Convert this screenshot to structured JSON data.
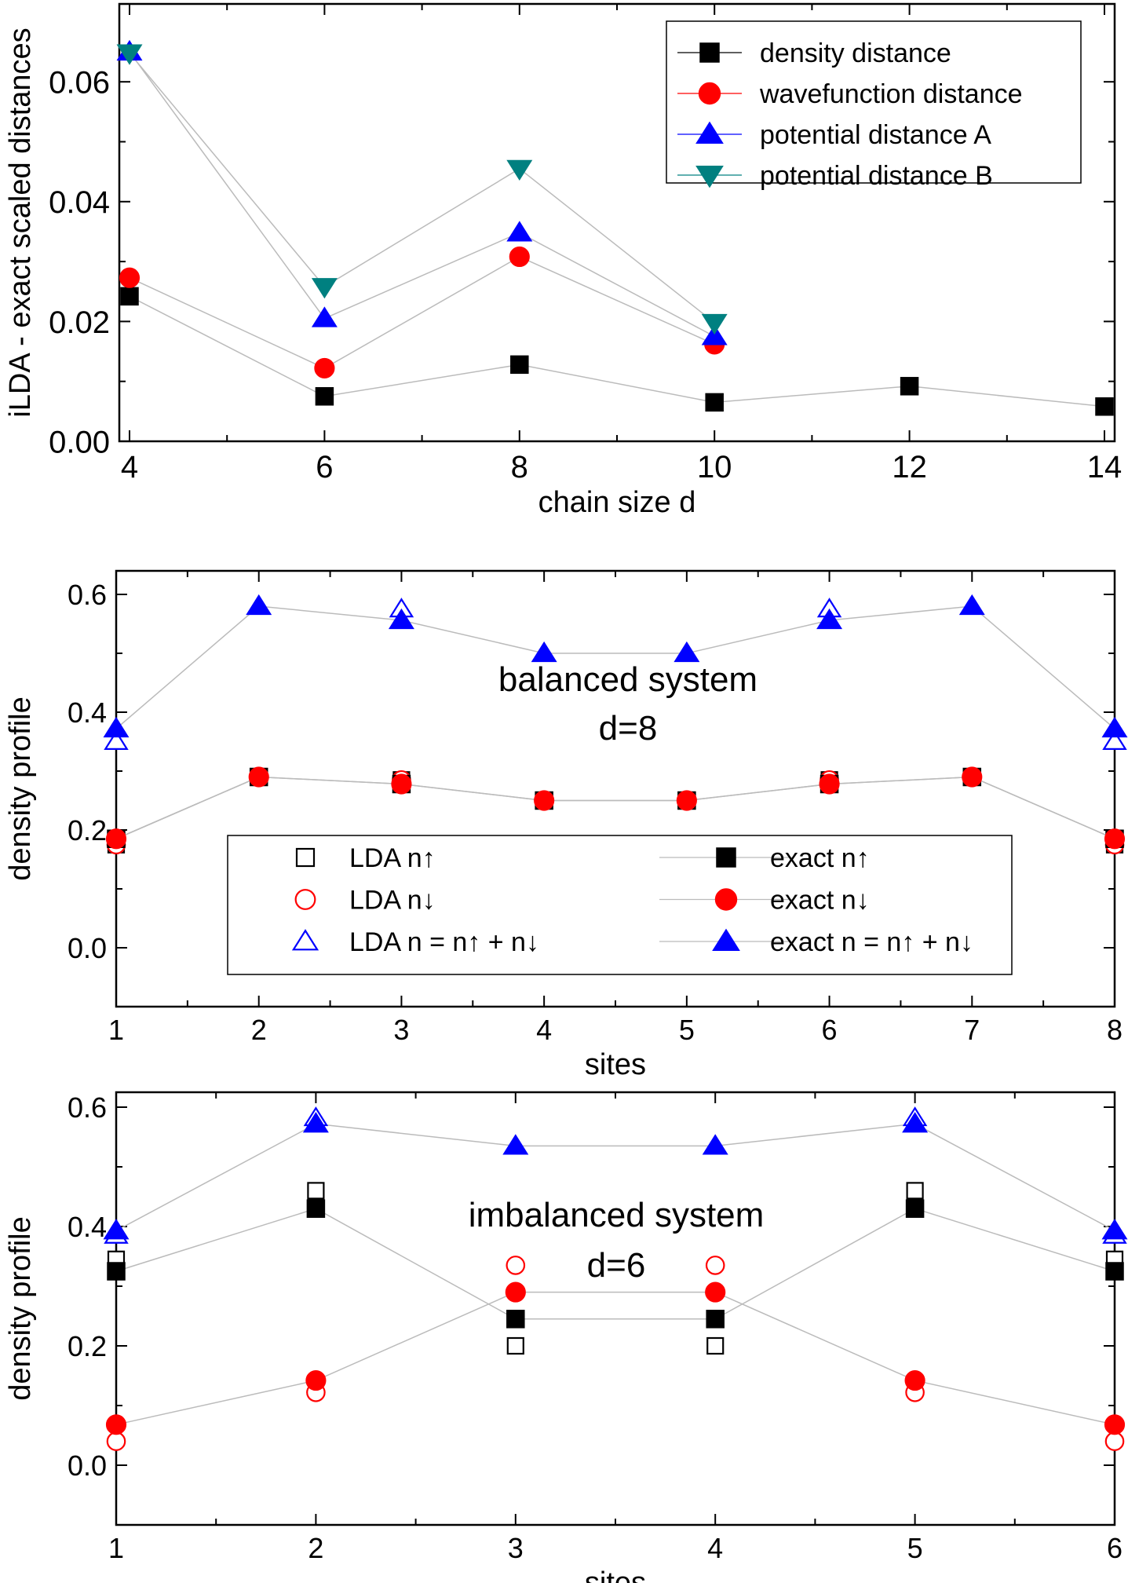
{
  "colors": {
    "black": "#000000",
    "red": "#ff0000",
    "blue": "#0000ff",
    "teal": "#008080",
    "line": "#bbbbbb"
  },
  "chart_data": [
    {
      "type": "scatter",
      "xlabel": "chain size d",
      "ylabel": "iLDA - exact scaled distances",
      "xlim": [
        4,
        14
      ],
      "ylim": [
        0.0,
        0.073
      ],
      "xticks": [
        4,
        6,
        8,
        10,
        12,
        14
      ],
      "yticks": [
        0.0,
        0.02,
        0.04,
        0.06
      ],
      "ytick_labels": [
        "0.00",
        "0.02",
        "0.04",
        "0.06"
      ],
      "x_minor": [
        5,
        7,
        9,
        11,
        13
      ],
      "legend": {
        "placement": "top-right",
        "columns": 1
      },
      "series": [
        {
          "name": "density distance",
          "marker": "square",
          "color": "#000000",
          "filled": true,
          "connect": true,
          "x": [
            4,
            6,
            8,
            10,
            12,
            14
          ],
          "y": [
            0.0242,
            0.0075,
            0.0128,
            0.0065,
            0.0092,
            0.0058
          ]
        },
        {
          "name": "wavefunction distance",
          "marker": "circle",
          "color": "#ff0000",
          "filled": true,
          "connect": true,
          "x": [
            4,
            6,
            8,
            10
          ],
          "y": [
            0.0273,
            0.0122,
            0.0308,
            0.0162
          ]
        },
        {
          "name": "potential distance A",
          "marker": "triangle-up",
          "color": "#0000ff",
          "filled": true,
          "connect": true,
          "x": [
            4,
            6,
            8,
            10
          ],
          "y": [
            0.065,
            0.0205,
            0.0348,
            0.0175
          ]
        },
        {
          "name": "potential distance B",
          "marker": "triangle-down",
          "color": "#008080",
          "filled": true,
          "connect": true,
          "x": [
            4,
            6,
            8,
            10
          ],
          "y": [
            0.0648,
            0.0258,
            0.0455,
            0.0198
          ]
        }
      ]
    },
    {
      "type": "scatter",
      "xlabel": "sites",
      "ylabel": "density profile",
      "xlim": [
        1,
        8
      ],
      "ylim": [
        -0.1,
        0.64
      ],
      "xticks": [
        1,
        2,
        3,
        4,
        5,
        6,
        7,
        8
      ],
      "yticks": [
        0.0,
        0.2,
        0.4,
        0.6
      ],
      "ytick_labels": [
        "0.0",
        "0.2",
        "0.4",
        "0.6"
      ],
      "x_minor": [
        1.5,
        2.5,
        3.5,
        4.5,
        5.5,
        6.5,
        7.5
      ],
      "annotation": [
        "balanced system",
        "d=8"
      ],
      "legend": {
        "placement": "lower-center",
        "columns": 2
      },
      "series": [
        {
          "name": "LDA n↑",
          "marker": "square",
          "color": "#000000",
          "filled": false,
          "connect": false,
          "x": [
            1,
            2,
            3,
            4,
            5,
            6,
            7,
            8
          ],
          "y": [
            0.175,
            0.29,
            0.285,
            0.25,
            0.25,
            0.285,
            0.29,
            0.175
          ]
        },
        {
          "name": "LDA n↓",
          "marker": "circle",
          "color": "#ff0000",
          "filled": false,
          "connect": false,
          "x": [
            1,
            2,
            3,
            4,
            5,
            6,
            7,
            8
          ],
          "y": [
            0.175,
            0.29,
            0.285,
            0.25,
            0.25,
            0.285,
            0.29,
            0.175
          ]
        },
        {
          "name": "LDA n = n↑ + n↓",
          "marker": "triangle-up",
          "color": "#0000ff",
          "filled": false,
          "connect": false,
          "x": [
            1,
            2,
            3,
            4,
            5,
            6,
            7,
            8
          ],
          "y": [
            0.35,
            0.58,
            0.575,
            0.5,
            0.5,
            0.575,
            0.58,
            0.35
          ]
        },
        {
          "name": "exact n↑",
          "marker": "square",
          "color": "#000000",
          "filled": true,
          "connect": true,
          "x": [
            1,
            2,
            3,
            4,
            5,
            6,
            7,
            8
          ],
          "y": [
            0.185,
            0.29,
            0.278,
            0.25,
            0.25,
            0.278,
            0.29,
            0.185
          ]
        },
        {
          "name": "exact n↓",
          "marker": "circle",
          "color": "#ff0000",
          "filled": true,
          "connect": true,
          "x": [
            1,
            2,
            3,
            4,
            5,
            6,
            7,
            8
          ],
          "y": [
            0.185,
            0.29,
            0.278,
            0.25,
            0.25,
            0.278,
            0.29,
            0.185
          ]
        },
        {
          "name": "exact n = n↑ + n↓",
          "marker": "triangle-up",
          "color": "#0000ff",
          "filled": true,
          "connect": true,
          "x": [
            1,
            2,
            3,
            4,
            5,
            6,
            7,
            8
          ],
          "y": [
            0.372,
            0.58,
            0.556,
            0.5,
            0.5,
            0.556,
            0.58,
            0.372
          ]
        }
      ]
    },
    {
      "type": "scatter",
      "xlabel": "sites",
      "ylabel": "density profile",
      "xlim": [
        1,
        6
      ],
      "ylim": [
        -0.1,
        0.625
      ],
      "xticks": [
        1,
        2,
        3,
        4,
        5,
        6
      ],
      "yticks": [
        0.0,
        0.2,
        0.4,
        0.6
      ],
      "ytick_labels": [
        "0.0",
        "0.2",
        "0.4",
        "0.6"
      ],
      "x_minor": [
        1.5,
        2.5,
        3.5,
        4.5,
        5.5
      ],
      "annotation": [
        "imbalanced system",
        "d=6"
      ],
      "series": [
        {
          "name": "LDA n↑",
          "marker": "square",
          "color": "#000000",
          "filled": false,
          "connect": false,
          "x": [
            1,
            2,
            3,
            4,
            5,
            6
          ],
          "y": [
            0.345,
            0.46,
            0.2,
            0.2,
            0.46,
            0.345
          ]
        },
        {
          "name": "LDA n↓",
          "marker": "circle",
          "color": "#ff0000",
          "filled": false,
          "connect": false,
          "x": [
            1,
            2,
            3,
            4,
            5,
            6
          ],
          "y": [
            0.04,
            0.122,
            0.335,
            0.335,
            0.122,
            0.04
          ]
        },
        {
          "name": "LDA n = n↑ + n↓",
          "marker": "triangle-up",
          "color": "#0000ff",
          "filled": false,
          "connect": false,
          "x": [
            1,
            2,
            3,
            4,
            5,
            6
          ],
          "y": [
            0.385,
            0.582,
            0.535,
            0.535,
            0.582,
            0.385
          ]
        },
        {
          "name": "exact n↑",
          "marker": "square",
          "color": "#000000",
          "filled": true,
          "connect": true,
          "x": [
            1,
            2,
            3,
            4,
            5,
            6
          ],
          "y": [
            0.325,
            0.43,
            0.245,
            0.245,
            0.43,
            0.325
          ]
        },
        {
          "name": "exact n↓",
          "marker": "circle",
          "color": "#ff0000",
          "filled": true,
          "connect": true,
          "x": [
            1,
            2,
            3,
            4,
            5,
            6
          ],
          "y": [
            0.068,
            0.142,
            0.29,
            0.29,
            0.142,
            0.068
          ]
        },
        {
          "name": "exact n = n↑ + n↓",
          "marker": "triangle-up",
          "color": "#0000ff",
          "filled": true,
          "connect": true,
          "x": [
            1,
            2,
            3,
            4,
            5,
            6
          ],
          "y": [
            0.393,
            0.572,
            0.535,
            0.535,
            0.572,
            0.393
          ]
        }
      ]
    }
  ]
}
